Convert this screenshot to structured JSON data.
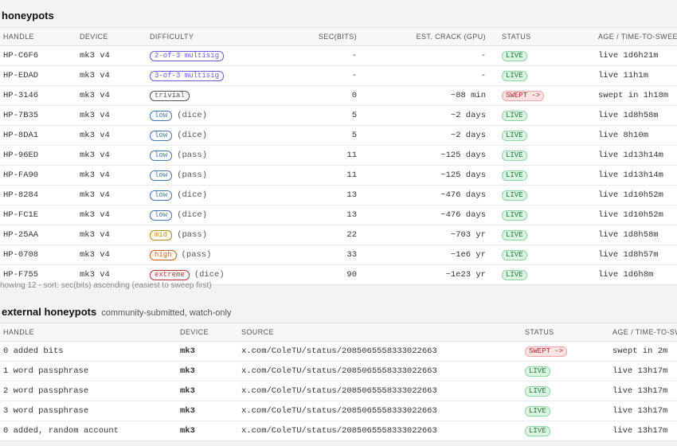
{
  "section1": {
    "title": "honeypots",
    "headers": [
      "HANDLE",
      "DEVICE",
      "DIFFICULTY",
      "SEC(BITS)",
      "EST. CRACK (GPU)",
      "STATUS",
      "AGE / TIME-TO-SWEEP"
    ],
    "rows": [
      {
        "handle": "HP-C6F6",
        "device": "mk3 v4",
        "difficulty": "2-of-3 multisig",
        "detail": "",
        "bits": "-",
        "crack": "-",
        "status": "LIVE",
        "age": "live 1d6h21m",
        "tone": "purple"
      },
      {
        "handle": "HP-EDAD",
        "device": "mk3 v4",
        "difficulty": "3-of-3 multisig",
        "detail": "",
        "bits": "-",
        "crack": "-",
        "status": "LIVE",
        "age": "live 11h1m",
        "tone": "purple"
      },
      {
        "handle": "HP-3146",
        "device": "mk3 v4",
        "difficulty": "trivial",
        "detail": "",
        "bits": "0",
        "crack": "~88 min",
        "status": "SWEPT ->",
        "age": "swept in 1h18m",
        "tone": "gray"
      },
      {
        "handle": "HP-7B35",
        "device": "mk3 v4",
        "difficulty": "low",
        "detail": "(dice)",
        "bits": "5",
        "crack": "~2 days",
        "status": "LIVE",
        "age": "live 1d8h58m",
        "tone": "blue"
      },
      {
        "handle": "HP-8DA1",
        "device": "mk3 v4",
        "difficulty": "low",
        "detail": "(dice)",
        "bits": "5",
        "crack": "~2 days",
        "status": "LIVE",
        "age": "live 8h10m",
        "tone": "blue"
      },
      {
        "handle": "HP-96ED",
        "device": "mk3 v4",
        "difficulty": "low",
        "detail": "(pass)",
        "bits": "11",
        "crack": "~125 days",
        "status": "LIVE",
        "age": "live 1d13h14m",
        "tone": "blue"
      },
      {
        "handle": "HP-FA90",
        "device": "mk3 v4",
        "difficulty": "low",
        "detail": "(pass)",
        "bits": "11",
        "crack": "~125 days",
        "status": "LIVE",
        "age": "live 1d13h14m",
        "tone": "blue"
      },
      {
        "handle": "HP-8284",
        "device": "mk3 v4",
        "difficulty": "low",
        "detail": "(dice)",
        "bits": "13",
        "crack": "~476 days",
        "status": "LIVE",
        "age": "live 1d10h52m",
        "tone": "blue"
      },
      {
        "handle": "HP-FC1E",
        "device": "mk3 v4",
        "difficulty": "low",
        "detail": "(dice)",
        "bits": "13",
        "crack": "~476 days",
        "status": "LIVE",
        "age": "live 1d10h52m",
        "tone": "blue"
      },
      {
        "handle": "HP-25AA",
        "device": "mk3 v4",
        "difficulty": "mid",
        "detail": "(pass)",
        "bits": "22",
        "crack": "~703 yr",
        "status": "LIVE",
        "age": "live 1d8h58m",
        "tone": "amber"
      },
      {
        "handle": "HP-0708",
        "device": "mk3 v4",
        "difficulty": "high",
        "detail": "(pass)",
        "bits": "33",
        "crack": "~1e6 yr",
        "status": "LIVE",
        "age": "live 1d8h57m",
        "tone": "orange"
      },
      {
        "handle": "HP-F755",
        "device": "mk3 v4",
        "difficulty": "extreme",
        "detail": "(dice)",
        "bits": "90",
        "crack": "~1e23 yr",
        "status": "LIVE",
        "age": "live 1d6h8m",
        "tone": "red"
      }
    ],
    "footer": "howing 12 - sort: sec(bits) ascending (easiest to sweep first)"
  },
  "section2": {
    "title": "external honeypots",
    "subtitle": "community-submitted, watch-only",
    "headers": [
      "HANDLE",
      "DEVICE",
      "SOURCE",
      "STATUS",
      "AGE / TIME-TO-SWE"
    ],
    "rows": [
      {
        "handle": "0 added bits",
        "device": "mk3",
        "source": "x.com/ColeTU/status/2085065558333022663",
        "status": "SWEPT ->",
        "age": "swept in 2m"
      },
      {
        "handle": "1 word passphrase",
        "device": "mk3",
        "source": "x.com/ColeTU/status/2085065558333022663",
        "status": "LIVE",
        "age": "live 13h17m"
      },
      {
        "handle": "2 word passphrase",
        "device": "mk3",
        "source": "x.com/ColeTU/status/2085065558333022663",
        "status": "LIVE",
        "age": "live 13h17m"
      },
      {
        "handle": "3 word passphrase",
        "device": "mk3",
        "source": "x.com/ColeTU/status/2085065558333022663",
        "status": "LIVE",
        "age": "live 13h17m"
      },
      {
        "handle": "0 added, random account",
        "device": "mk3",
        "source": "x.com/ColeTU/status/2085065558333022663",
        "status": "LIVE",
        "age": "live 13h17m"
      }
    ]
  },
  "colors": {
    "live_bg": "#dcf5e3",
    "live_text": "#1f7a3a",
    "swept_bg": "#fde2e4",
    "swept_text": "#b3262f",
    "purple": "#6b5bd6",
    "blue": "#4a78b5",
    "gray": "#555555",
    "amber": "#b58a10",
    "orange": "#d0601a",
    "red": "#c0303a"
  }
}
